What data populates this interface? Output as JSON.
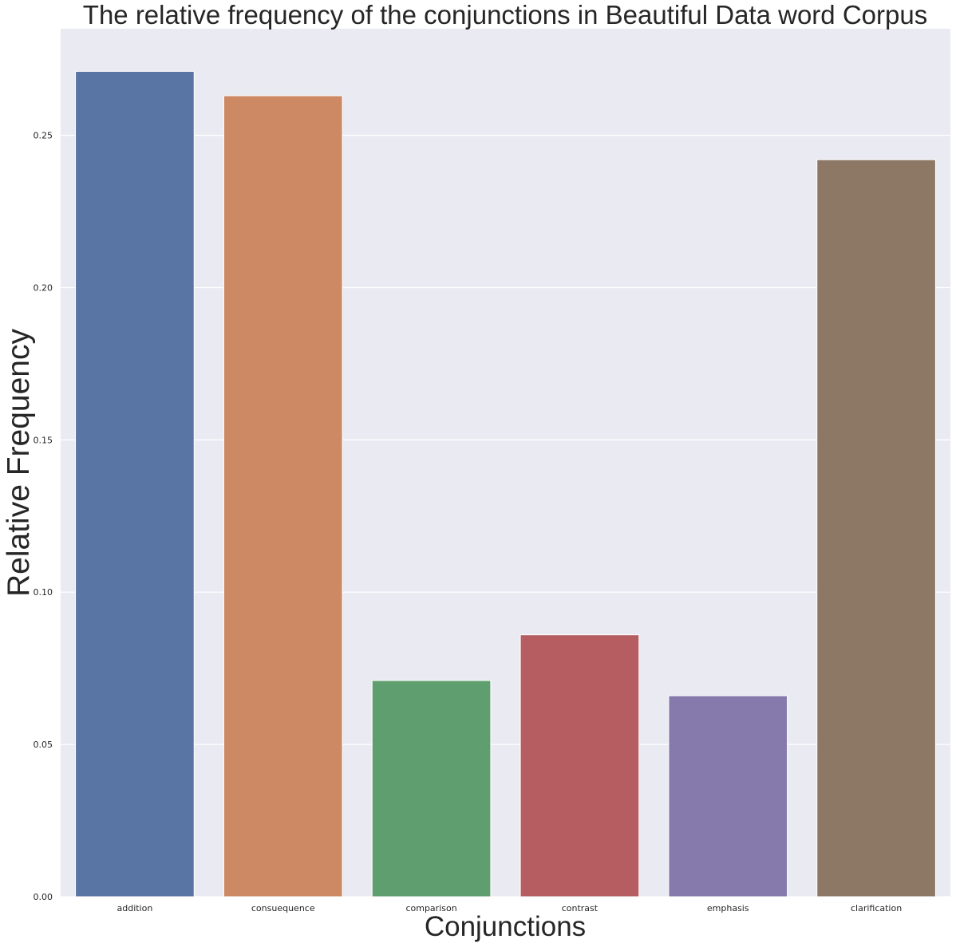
{
  "chart_data": {
    "type": "bar",
    "title": "The relative frequency of the conjunctions in Beautiful Data word Corpus",
    "xlabel": "Conjunctions",
    "ylabel": "Relative Frequency",
    "categories": [
      "addition",
      "consuequence",
      "comparison",
      "contrast",
      "emphasis",
      "clarification"
    ],
    "values": [
      0.271,
      0.263,
      0.071,
      0.086,
      0.066,
      0.242
    ],
    "colors": [
      "#5875a4",
      "#cc8963",
      "#5f9e6e",
      "#b55d60",
      "#857aab",
      "#8d7866"
    ],
    "ylim": [
      0,
      0.285
    ],
    "yticks": [
      0.0,
      0.05,
      0.1,
      0.15,
      0.2,
      0.25
    ],
    "ytick_labels": [
      "0.00",
      "0.05",
      "0.10",
      "0.15",
      "0.20",
      "0.25"
    ],
    "grid": true,
    "background": "#eaeaf2",
    "grid_color": "#ffffff",
    "legend": "none"
  }
}
